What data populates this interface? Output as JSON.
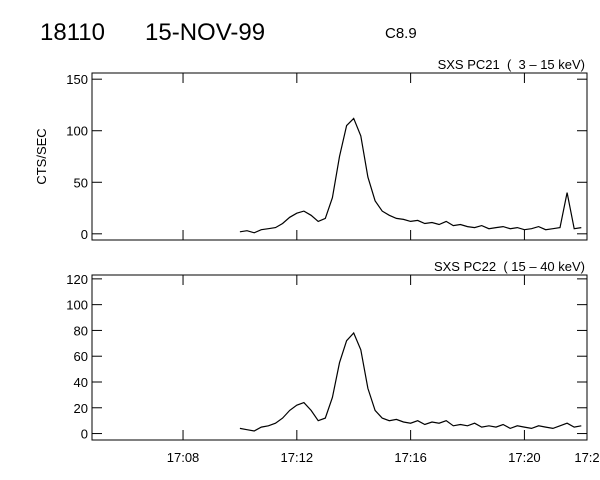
{
  "header": {
    "id": "18110",
    "date": "15-NOV-99",
    "class": "C8.9"
  },
  "chart_data": [
    {
      "type": "line",
      "subtitle": "SXS PC21  (  3 – 15 keV)",
      "y_label": "CTS/SEC",
      "x": [
        1030,
        1030.25,
        1030.5,
        1030.75,
        1031,
        1031.25,
        1031.5,
        1031.75,
        1032,
        1032.25,
        1032.5,
        1032.75,
        1033,
        1033.25,
        1033.5,
        1033.75,
        1034,
        1034.25,
        1034.5,
        1034.75,
        1035,
        1035.25,
        1035.5,
        1035.75,
        1036,
        1036.25,
        1036.5,
        1036.75,
        1037,
        1037.25,
        1037.5,
        1037.75,
        1038,
        1038.25,
        1038.5,
        1038.75,
        1039,
        1039.25,
        1039.5,
        1039.75,
        1040,
        1040.25,
        1040.5,
        1040.75,
        1041,
        1041.25,
        1041.5,
        1041.75,
        1042
      ],
      "series": [
        {
          "color": "#000000",
          "values": [
            2,
            3,
            1,
            4,
            5,
            6,
            10,
            16,
            20,
            22,
            18,
            12,
            15,
            35,
            75,
            105,
            112,
            95,
            55,
            32,
            22,
            18,
            15,
            14,
            12,
            13,
            10,
            11,
            9,
            12,
            8,
            9,
            7,
            6,
            8,
            5,
            6,
            7,
            5,
            6,
            4,
            5,
            7,
            4,
            5,
            6,
            40,
            5,
            6
          ]
        }
      ],
      "xlim": [
        1024.8,
        1042.2
      ],
      "xticks": [
        1028,
        1032,
        1036,
        1040
      ],
      "ylim": [
        -6,
        156
      ],
      "yticks": [
        0,
        50,
        100,
        150
      ]
    },
    {
      "type": "line",
      "subtitle": "SXS PC22  ( 15 – 40 keV)",
      "x": [
        1030,
        1030.25,
        1030.5,
        1030.75,
        1031,
        1031.25,
        1031.5,
        1031.75,
        1032,
        1032.25,
        1032.5,
        1032.75,
        1033,
        1033.25,
        1033.5,
        1033.75,
        1034,
        1034.25,
        1034.5,
        1034.75,
        1035,
        1035.25,
        1035.5,
        1035.75,
        1036,
        1036.25,
        1036.5,
        1036.75,
        1037,
        1037.25,
        1037.5,
        1037.75,
        1038,
        1038.25,
        1038.5,
        1038.75,
        1039,
        1039.25,
        1039.5,
        1039.75,
        1040,
        1040.25,
        1040.5,
        1040.75,
        1041,
        1041.25,
        1041.5,
        1041.75,
        1042
      ],
      "series": [
        {
          "color": "#000000",
          "values": [
            4,
            3,
            2,
            5,
            6,
            8,
            12,
            18,
            22,
            24,
            18,
            10,
            12,
            28,
            55,
            72,
            78,
            65,
            35,
            18,
            12,
            10,
            11,
            9,
            8,
            10,
            7,
            9,
            8,
            10,
            6,
            7,
            6,
            8,
            5,
            6,
            5,
            7,
            4,
            6,
            5,
            4,
            6,
            5,
            4,
            6,
            8,
            5,
            6
          ]
        }
      ],
      "xlim": [
        1024.8,
        1042.2
      ],
      "xticks": [
        {
          "value": 1028,
          "label": "17:08"
        },
        {
          "value": 1032,
          "label": "17:12"
        },
        {
          "value": 1036,
          "label": "17:16"
        },
        {
          "value": 1040,
          "label": "17:20"
        },
        {
          "value": 1042.2,
          "label": "17:2"
        }
      ],
      "ylim": [
        -5,
        123
      ],
      "yticks": [
        0,
        20,
        40,
        60,
        80,
        100,
        120
      ]
    }
  ]
}
